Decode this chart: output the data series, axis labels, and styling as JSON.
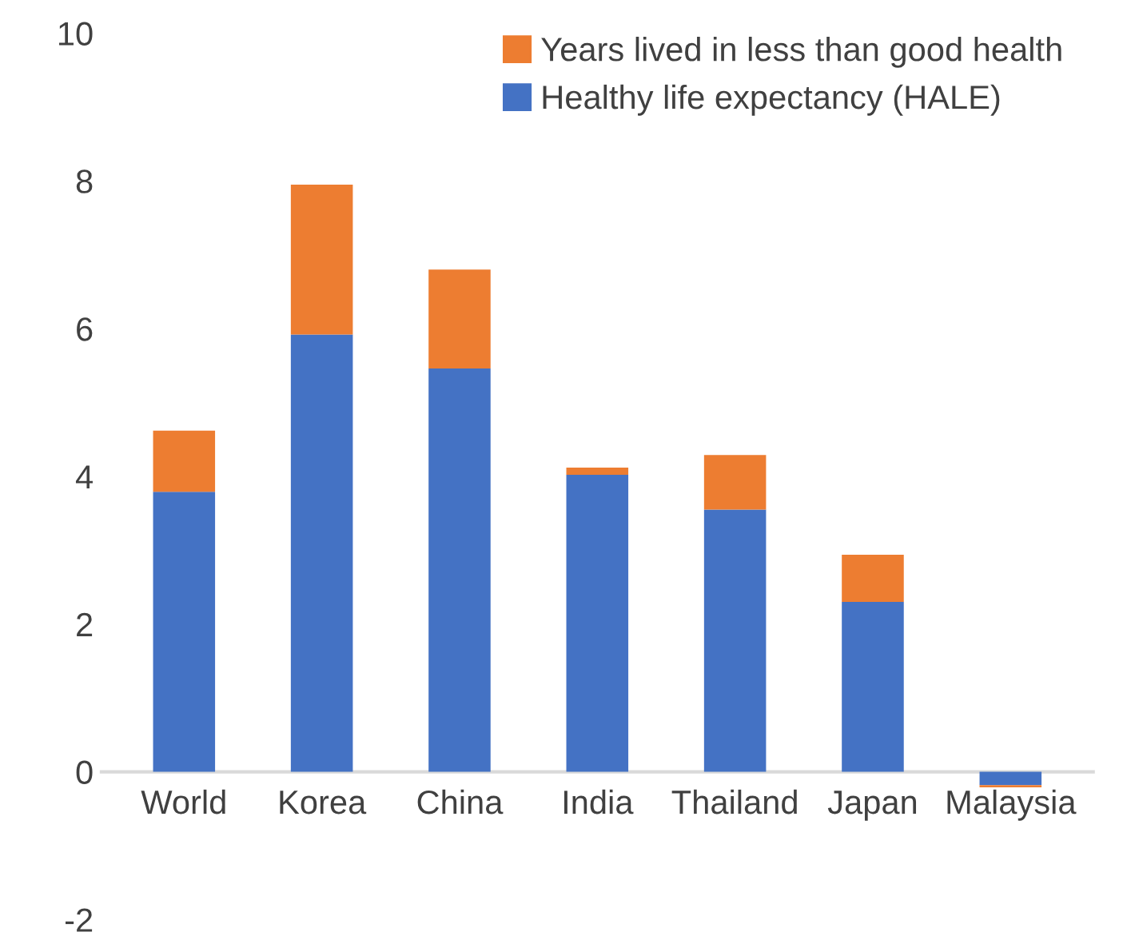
{
  "chart_data": {
    "type": "bar",
    "stacked": true,
    "categories": [
      "World",
      "Korea",
      "China",
      "India",
      "Thailand",
      "Japan",
      "Malaysia"
    ],
    "series": [
      {
        "name": "Healthy life expectancy (HALE)",
        "color": "#4472c4",
        "values": [
          3.79,
          5.92,
          5.46,
          4.02,
          3.55,
          2.3,
          -0.18
        ]
      },
      {
        "name": "Years lived in less than good health",
        "color": "#ed7d31",
        "values": [
          0.83,
          2.03,
          1.34,
          0.1,
          0.74,
          0.64,
          -0.03
        ]
      }
    ],
    "ylim": [
      -2,
      10
    ],
    "yticks": [
      -2,
      0,
      2,
      4,
      6,
      8,
      10
    ],
    "grid": false,
    "legend": "top right"
  }
}
